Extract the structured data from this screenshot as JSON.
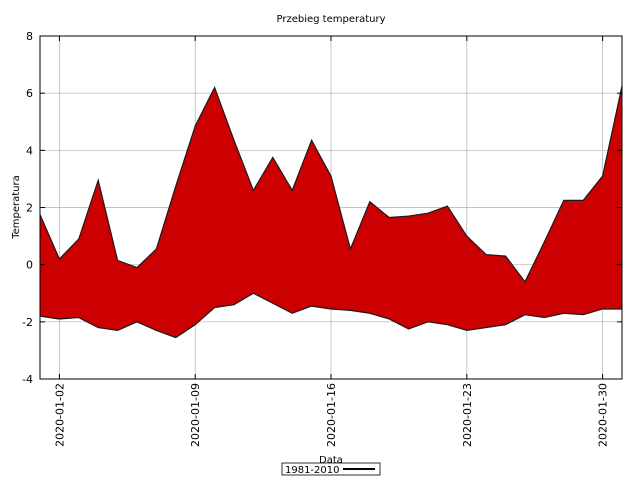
{
  "chart_data": {
    "type": "area",
    "title": "Przebieg temperatury",
    "xlabel": "Data",
    "ylabel": "Temperatura",
    "ylim": [
      -4,
      8
    ],
    "yticks": [
      -4,
      -2,
      0,
      2,
      4,
      6,
      8
    ],
    "xlim": [
      "2020-01-01",
      "2020-01-31"
    ],
    "xticks": [
      "2020-01-02",
      "2020-01-09",
      "2020-01-16",
      "2020-01-23",
      "2020-01-30"
    ],
    "grid": true,
    "legend_position": "bottom-center",
    "colors": {
      "fill": "#cc0000",
      "line": "#1a1a1a",
      "grid": "#b0b0b0"
    },
    "x": [
      "2020-01-01",
      "2020-01-02",
      "2020-01-03",
      "2020-01-04",
      "2020-01-05",
      "2020-01-06",
      "2020-01-07",
      "2020-01-08",
      "2020-01-09",
      "2020-01-10",
      "2020-01-11",
      "2020-01-12",
      "2020-01-13",
      "2020-01-14",
      "2020-01-15",
      "2020-01-16",
      "2020-01-17",
      "2020-01-18",
      "2020-01-19",
      "2020-01-20",
      "2020-01-21",
      "2020-01-22",
      "2020-01-23",
      "2020-01-24",
      "2020-01-25",
      "2020-01-26",
      "2020-01-27",
      "2020-01-28",
      "2020-01-29",
      "2020-01-30",
      "2020-01-31"
    ],
    "series": [
      {
        "name": "1981-2010",
        "upper": [
          1.75,
          0.2,
          0.9,
          2.95,
          0.15,
          -0.1,
          0.55,
          2.75,
          4.85,
          6.2,
          4.35,
          2.6,
          3.75,
          2.6,
          4.35,
          3.1,
          0.55,
          2.2,
          1.65,
          1.7,
          1.8,
          2.05,
          1.0,
          0.35,
          0.3,
          -0.6,
          0.8,
          2.25,
          2.25,
          3.1,
          6.25
        ],
        "lower": [
          -1.8,
          -1.9,
          -1.85,
          -2.2,
          -2.3,
          -2.0,
          -2.3,
          -2.55,
          -2.1,
          -1.5,
          -1.4,
          -1.0,
          -1.35,
          -1.7,
          -1.45,
          -1.55,
          -1.6,
          -1.7,
          -1.9,
          -2.25,
          -2.0,
          -2.1,
          -2.3,
          -2.2,
          -2.1,
          -1.75,
          -1.85,
          -1.7,
          -1.75,
          -1.55,
          -1.55
        ]
      }
    ]
  }
}
